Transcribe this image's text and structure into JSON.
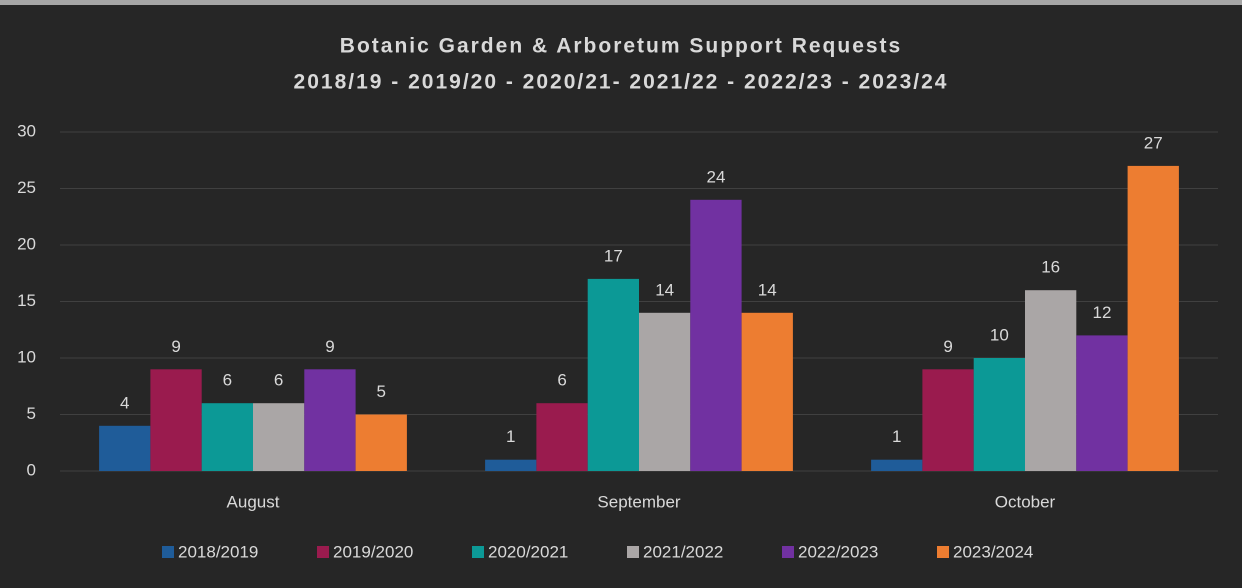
{
  "chart_data": {
    "type": "bar",
    "title": "Botanic Garden & Arboretum Support Requests",
    "subtitle": "2018/19 - 2019/20 - 2020/21- 2021/22 - 2022/23 - 2023/24",
    "categories": [
      "August",
      "September",
      "October"
    ],
    "series": [
      {
        "name": "2018/2019",
        "color": "#1f5c99",
        "values": [
          4,
          1,
          1
        ]
      },
      {
        "name": "2019/2020",
        "color": "#9a1b4e",
        "values": [
          9,
          6,
          9
        ]
      },
      {
        "name": "2020/2021",
        "color": "#0c9996",
        "values": [
          6,
          17,
          10
        ]
      },
      {
        "name": "2021/2022",
        "color": "#aaa6a6",
        "values": [
          6,
          14,
          16
        ]
      },
      {
        "name": "2022/2023",
        "color": "#7131a1",
        "values": [
          9,
          24,
          12
        ]
      },
      {
        "name": "2023/2024",
        "color": "#ed7d31",
        "values": [
          5,
          14,
          27
        ]
      }
    ],
    "ylim": [
      0,
      30
    ],
    "yticks": [
      0,
      5,
      10,
      15,
      20,
      25,
      30
    ],
    "grid": true,
    "legend": "bottom"
  }
}
